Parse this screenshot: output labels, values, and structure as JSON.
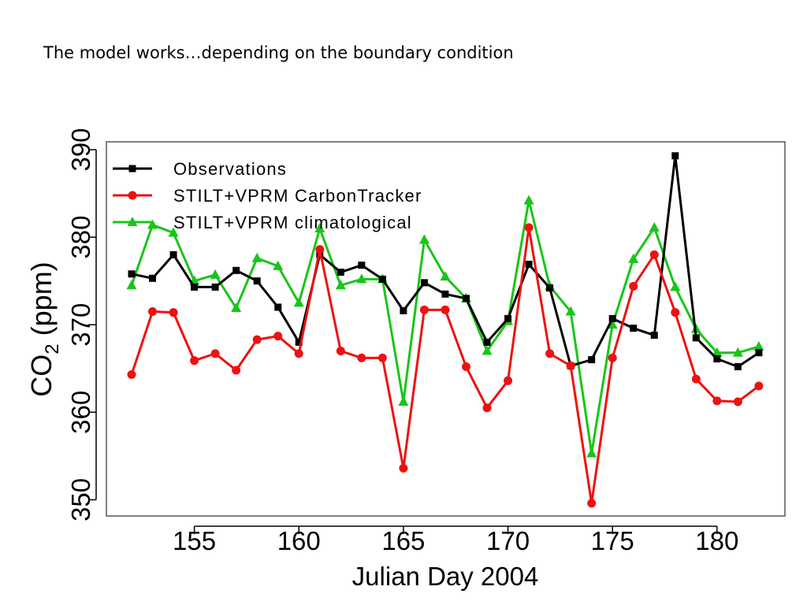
{
  "slide": {
    "title": "The model works…depending on the boundary condition"
  },
  "chart_data": {
    "type": "line",
    "title": "",
    "xlabel": "Julian Day 2004",
    "ylabel_main": "CO",
    "ylabel_sub": "2",
    "ylabel_units": " (ppm)",
    "xlim": [
      152,
      182
    ],
    "ylim": [
      350,
      390
    ],
    "x_ticks": [
      155,
      160,
      165,
      170,
      175,
      180
    ],
    "y_ticks": [
      350,
      360,
      370,
      380,
      390
    ],
    "legend_position": "top-left",
    "x": [
      152,
      153,
      154,
      155,
      156,
      157,
      158,
      159,
      160,
      161,
      162,
      163,
      164,
      165,
      166,
      167,
      168,
      169,
      170,
      171,
      172,
      173,
      174,
      175,
      176,
      177,
      178,
      179,
      180,
      181,
      182
    ],
    "series": [
      {
        "name": "Observations",
        "color": "#000000",
        "marker": "square",
        "values": [
          375.8,
          375.3,
          378.0,
          374.3,
          374.3,
          376.2,
          375.0,
          372.0,
          368.0,
          378.0,
          376.0,
          376.8,
          375.2,
          371.6,
          374.8,
          373.5,
          373.0,
          368.0,
          370.7,
          376.9,
          374.2,
          365.3,
          366.0,
          370.7,
          369.6,
          368.8,
          389.3,
          368.5,
          366.1,
          365.2,
          366.8
        ]
      },
      {
        "name": "STILT+VPRM CarbonTracker",
        "color": "#ee1111",
        "marker": "circle",
        "values": [
          364.3,
          371.5,
          371.4,
          365.9,
          366.7,
          364.8,
          368.3,
          368.7,
          366.7,
          378.6,
          367.0,
          366.2,
          366.2,
          353.6,
          371.7,
          371.7,
          365.2,
          360.5,
          363.6,
          381.1,
          366.7,
          365.3,
          349.6,
          366.2,
          374.4,
          378.0,
          371.4,
          363.8,
          361.3,
          361.2,
          363.0
        ]
      },
      {
        "name": "STILT+VPRM climatological",
        "color": "#19c519",
        "marker": "triangle",
        "values": [
          374.5,
          381.4,
          380.5,
          375.0,
          375.7,
          371.9,
          377.6,
          376.7,
          372.5,
          381.0,
          374.5,
          375.2,
          375.2,
          361.2,
          379.7,
          375.5,
          373.0,
          367.0,
          370.4,
          384.2,
          374.4,
          371.5,
          355.3,
          370.0,
          377.5,
          381.1,
          374.3,
          369.5,
          366.8,
          366.8,
          367.5
        ]
      }
    ]
  }
}
